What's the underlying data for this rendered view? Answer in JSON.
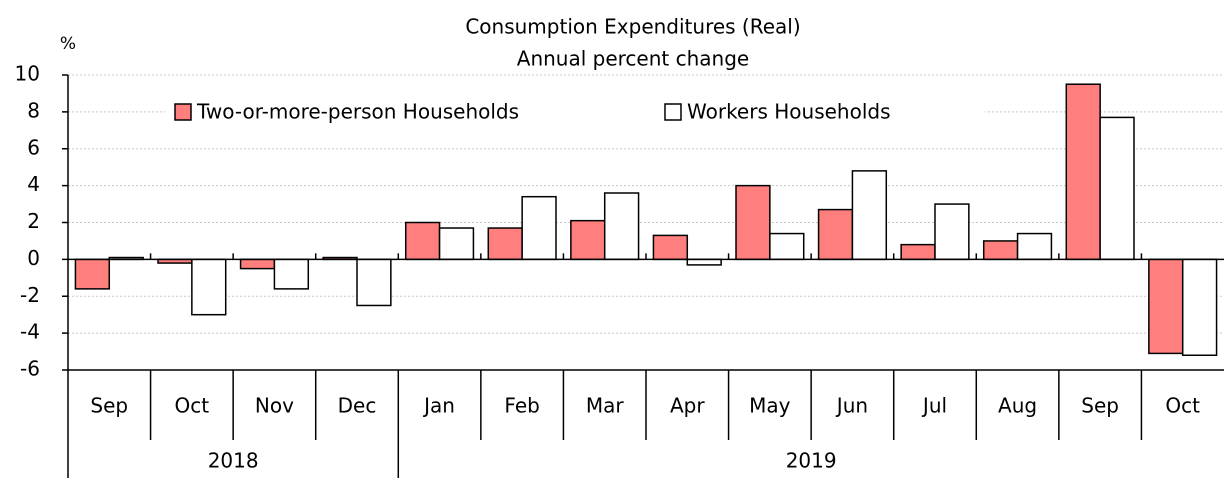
{
  "chart_data": {
    "type": "bar",
    "title": "Consumption Expenditures (Real)",
    "subtitle": "Annual percent change",
    "y_unit": "%",
    "categories": [
      "Sep",
      "Oct",
      "Nov",
      "Dec",
      "Jan",
      "Feb",
      "Mar",
      "Apr",
      "May",
      "Jun",
      "Jul",
      "Aug",
      "Sep",
      "Oct"
    ],
    "year_labels": [
      "2018",
      null,
      null,
      null,
      "2019",
      null,
      null,
      null,
      null,
      null,
      null,
      null,
      null,
      null
    ],
    "series": [
      {
        "name": "Two-or-more-person Households",
        "color": "#ff7f7f",
        "values": [
          -1.6,
          -0.2,
          -0.5,
          0.1,
          2.0,
          1.7,
          2.1,
          1.3,
          4.0,
          2.7,
          0.8,
          1.0,
          9.5,
          -5.1
        ]
      },
      {
        "name": "Workers Households",
        "color": "#ffffff",
        "values": [
          0.1,
          -3.0,
          -1.6,
          -2.5,
          1.7,
          3.4,
          3.6,
          -0.3,
          1.4,
          4.8,
          3.0,
          1.4,
          7.7,
          -5.2
        ]
      }
    ],
    "ylim": [
      -6,
      10
    ],
    "yticks": [
      -6,
      -4,
      -2,
      0,
      2,
      4,
      6,
      8,
      10
    ],
    "grid": true,
    "legend": "top-left"
  }
}
